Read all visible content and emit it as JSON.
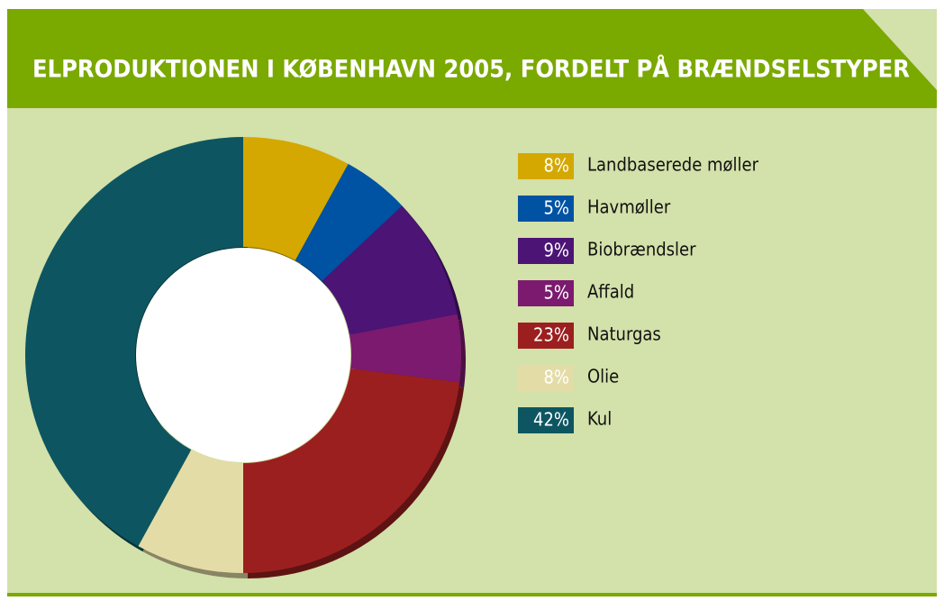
{
  "chart_data": {
    "type": "donut",
    "title": "ELPRODUKTIONEN I KØBENHAVN 2005, FORDELT PÅ BRÆNDSELSTYPER",
    "categories": [
      "Landbaserede møller",
      "Havmøller",
      "Biobrændsler",
      "Affald",
      "Naturgas",
      "Olie",
      "Kul"
    ],
    "values": [
      8,
      5,
      9,
      5,
      23,
      8,
      42
    ],
    "value_labels": [
      "8%",
      "5%",
      "9%",
      "5%",
      "23%",
      "8%",
      "42%"
    ],
    "colors": [
      "#d4a800",
      "#0052a3",
      "#4b1475",
      "#7b1a6f",
      "#9c1f1f",
      "#e4dca6",
      "#0d5661"
    ]
  }
}
